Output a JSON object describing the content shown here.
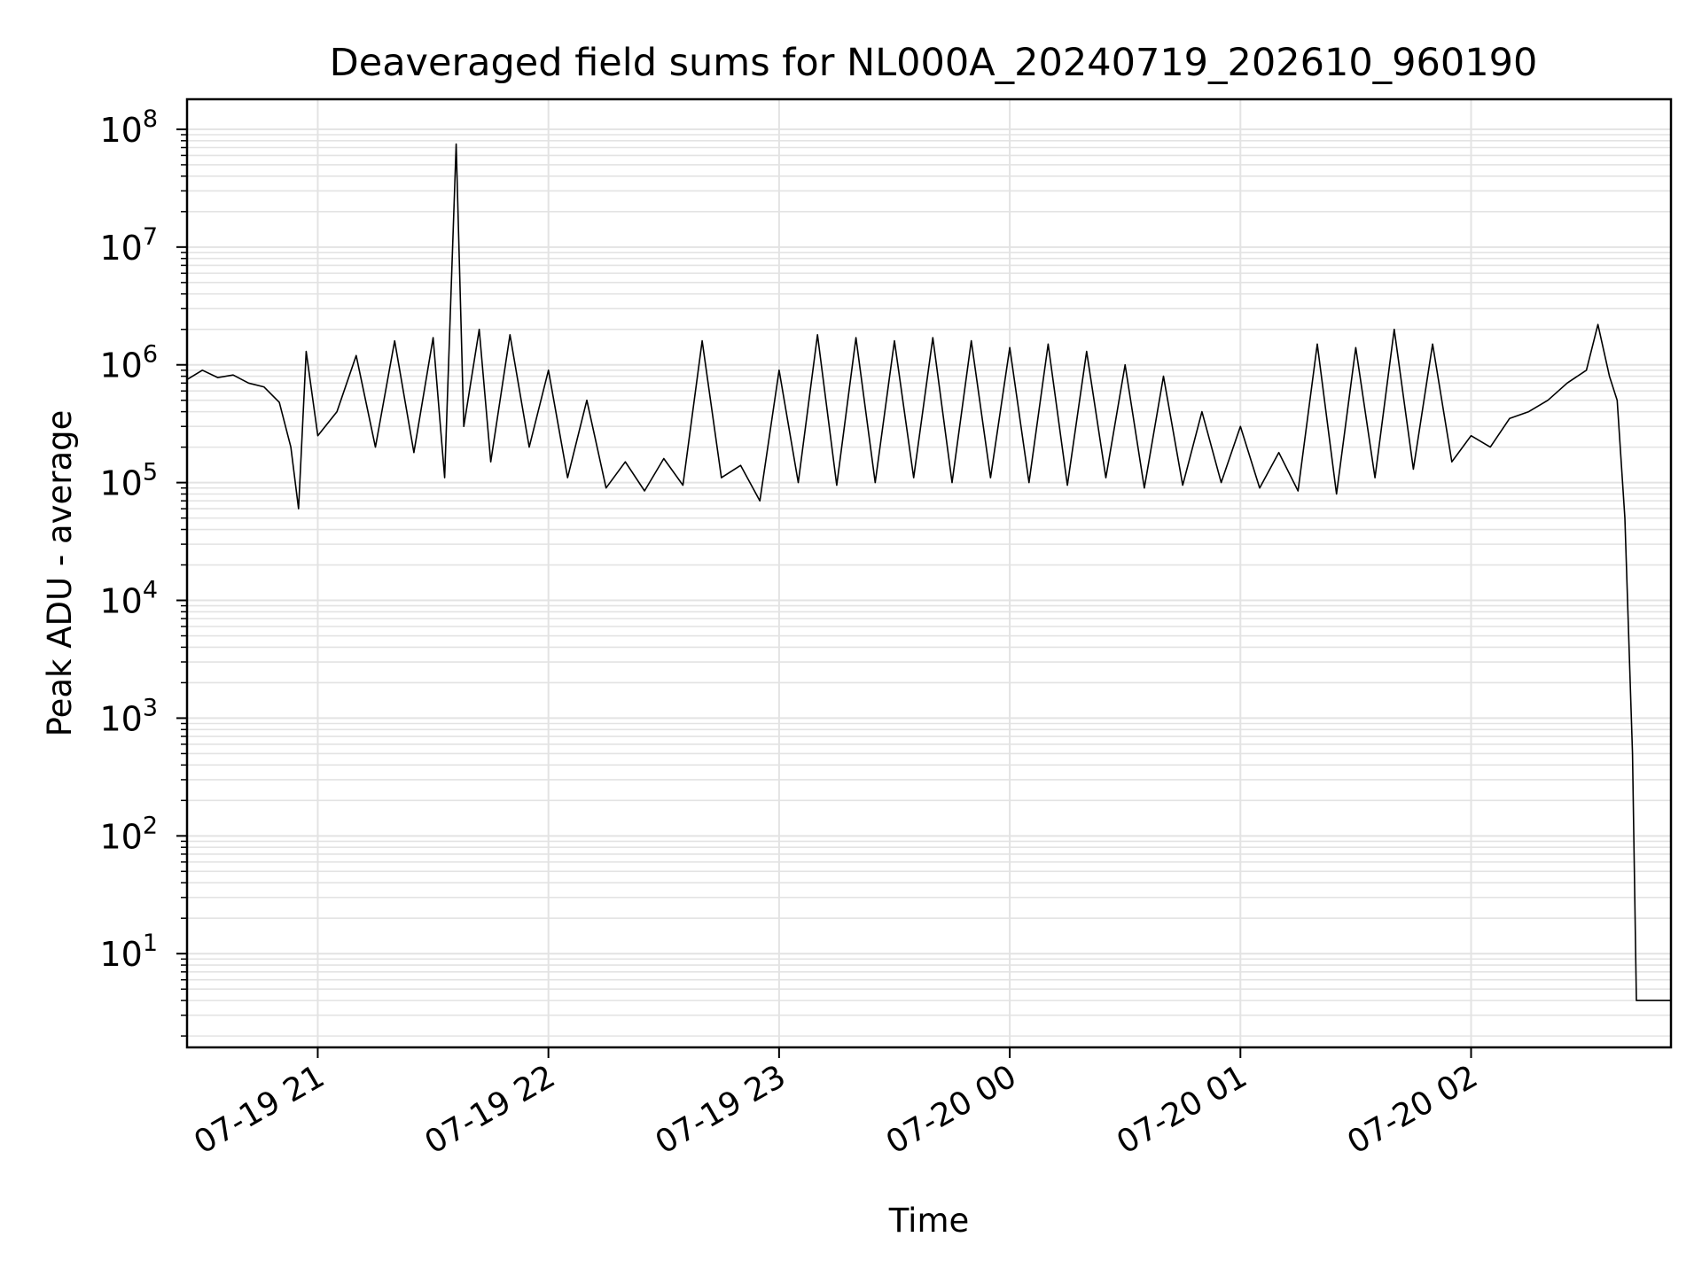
{
  "chart_data": {
    "type": "line",
    "title": "Deaveraged field sums for NL000A_20240719_202610_960190",
    "xlabel": "Time",
    "ylabel": "Peak ADU - average",
    "yscale": "log",
    "xlim": [
      "2024-07-19 20:26",
      "2024-07-20 02:52"
    ],
    "ylim": [
      1.6,
      180000000
    ],
    "grid": true,
    "xticks": [
      {
        "label": "07-19 21",
        "value": "2024-07-19 21:00"
      },
      {
        "label": "07-19 22",
        "value": "2024-07-19 22:00"
      },
      {
        "label": "07-19 23",
        "value": "2024-07-19 23:00"
      },
      {
        "label": "07-20 00",
        "value": "2024-07-20 00:00"
      },
      {
        "label": "07-20 01",
        "value": "2024-07-20 01:00"
      },
      {
        "label": "07-20 02",
        "value": "2024-07-20 02:00"
      }
    ],
    "yticks": [
      {
        "base": "10",
        "exp": "1",
        "value": 10
      },
      {
        "base": "10",
        "exp": "2",
        "value": 100
      },
      {
        "base": "10",
        "exp": "3",
        "value": 1000
      },
      {
        "base": "10",
        "exp": "4",
        "value": 10000
      },
      {
        "base": "10",
        "exp": "5",
        "value": 100000
      },
      {
        "base": "10",
        "exp": "6",
        "value": 1000000
      },
      {
        "base": "10",
        "exp": "7",
        "value": 10000000
      },
      {
        "base": "10",
        "exp": "8",
        "value": 100000000
      }
    ],
    "series": [
      {
        "color": "#000000",
        "points": [
          [
            "2024-07-19 20:26",
            750000
          ],
          [
            "2024-07-19 20:30",
            900000
          ],
          [
            "2024-07-19 20:34",
            780000
          ],
          [
            "2024-07-19 20:38",
            820000
          ],
          [
            "2024-07-19 20:42",
            700000
          ],
          [
            "2024-07-19 20:46",
            650000
          ],
          [
            "2024-07-19 20:50",
            480000
          ],
          [
            "2024-07-19 20:53",
            200000
          ],
          [
            "2024-07-19 20:55",
            60000
          ],
          [
            "2024-07-19 20:57",
            1300000
          ],
          [
            "2024-07-19 21:00",
            250000
          ],
          [
            "2024-07-19 21:05",
            400000
          ],
          [
            "2024-07-19 21:10",
            1200000
          ],
          [
            "2024-07-19 21:15",
            200000
          ],
          [
            "2024-07-19 21:20",
            1600000
          ],
          [
            "2024-07-19 21:25",
            180000
          ],
          [
            "2024-07-19 21:30",
            1700000
          ],
          [
            "2024-07-19 21:33",
            110000
          ],
          [
            "2024-07-19 21:36",
            75000000
          ],
          [
            "2024-07-19 21:38",
            300000
          ],
          [
            "2024-07-19 21:42",
            2000000
          ],
          [
            "2024-07-19 21:45",
            150000
          ],
          [
            "2024-07-19 21:50",
            1800000
          ],
          [
            "2024-07-19 21:55",
            200000
          ],
          [
            "2024-07-19 22:00",
            900000
          ],
          [
            "2024-07-19 22:05",
            110000
          ],
          [
            "2024-07-19 22:10",
            500000
          ],
          [
            "2024-07-19 22:15",
            90000
          ],
          [
            "2024-07-19 22:20",
            150000
          ],
          [
            "2024-07-19 22:25",
            85000
          ],
          [
            "2024-07-19 22:30",
            160000
          ],
          [
            "2024-07-19 22:35",
            95000
          ],
          [
            "2024-07-19 22:40",
            1600000
          ],
          [
            "2024-07-19 22:45",
            110000
          ],
          [
            "2024-07-19 22:50",
            140000
          ],
          [
            "2024-07-19 22:55",
            70000
          ],
          [
            "2024-07-19 23:00",
            900000
          ],
          [
            "2024-07-19 23:05",
            100000
          ],
          [
            "2024-07-19 23:10",
            1800000
          ],
          [
            "2024-07-19 23:15",
            95000
          ],
          [
            "2024-07-19 23:20",
            1700000
          ],
          [
            "2024-07-19 23:25",
            100000
          ],
          [
            "2024-07-19 23:30",
            1600000
          ],
          [
            "2024-07-19 23:35",
            110000
          ],
          [
            "2024-07-19 23:40",
            1700000
          ],
          [
            "2024-07-19 23:45",
            100000
          ],
          [
            "2024-07-19 23:50",
            1600000
          ],
          [
            "2024-07-19 23:55",
            110000
          ],
          [
            "2024-07-20 00:00",
            1400000
          ],
          [
            "2024-07-20 00:05",
            100000
          ],
          [
            "2024-07-20 00:10",
            1500000
          ],
          [
            "2024-07-20 00:15",
            95000
          ],
          [
            "2024-07-20 00:20",
            1300000
          ],
          [
            "2024-07-20 00:25",
            110000
          ],
          [
            "2024-07-20 00:30",
            1000000
          ],
          [
            "2024-07-20 00:35",
            90000
          ],
          [
            "2024-07-20 00:40",
            800000
          ],
          [
            "2024-07-20 00:45",
            95000
          ],
          [
            "2024-07-20 00:50",
            400000
          ],
          [
            "2024-07-20 00:55",
            100000
          ],
          [
            "2024-07-20 01:00",
            300000
          ],
          [
            "2024-07-20 01:05",
            90000
          ],
          [
            "2024-07-20 01:10",
            180000
          ],
          [
            "2024-07-20 01:15",
            85000
          ],
          [
            "2024-07-20 01:20",
            1500000
          ],
          [
            "2024-07-20 01:25",
            80000
          ],
          [
            "2024-07-20 01:30",
            1400000
          ],
          [
            "2024-07-20 01:35",
            110000
          ],
          [
            "2024-07-20 01:40",
            2000000
          ],
          [
            "2024-07-20 01:45",
            130000
          ],
          [
            "2024-07-20 01:50",
            1500000
          ],
          [
            "2024-07-20 01:55",
            150000
          ],
          [
            "2024-07-20 02:00",
            250000
          ],
          [
            "2024-07-20 02:05",
            200000
          ],
          [
            "2024-07-20 02:10",
            350000
          ],
          [
            "2024-07-20 02:15",
            400000
          ],
          [
            "2024-07-20 02:20",
            500000
          ],
          [
            "2024-07-20 02:25",
            700000
          ],
          [
            "2024-07-20 02:30",
            900000
          ],
          [
            "2024-07-20 02:33",
            2200000
          ],
          [
            "2024-07-20 02:36",
            800000
          ],
          [
            "2024-07-20 02:38",
            500000
          ],
          [
            "2024-07-20 02:40",
            50000
          ],
          [
            "2024-07-20 02:42",
            500
          ],
          [
            "2024-07-20 02:43",
            4
          ],
          [
            "2024-07-20 02:52",
            4
          ]
        ]
      }
    ]
  }
}
